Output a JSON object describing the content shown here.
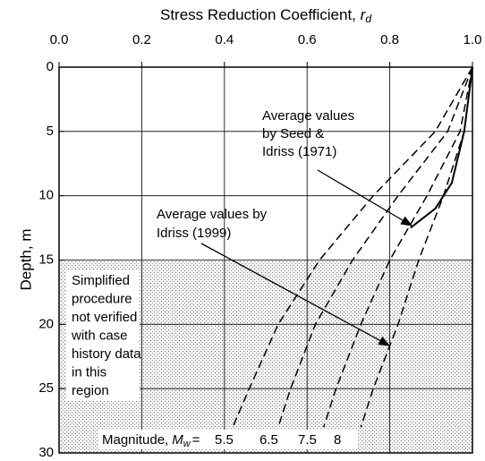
{
  "chart_data": {
    "type": "line",
    "title": {
      "text": "Stress Reduction Coefficient,",
      "symbol": "r",
      "subscript": "d"
    },
    "y_label": "Depth, m",
    "xlim": [
      0,
      1
    ],
    "xticks": [
      {
        "value": 0,
        "label": "0.0"
      },
      0.2,
      0.4,
      0.6,
      0.8,
      {
        "value": 1,
        "label": "1.0"
      }
    ],
    "ylim": [
      0,
      30
    ],
    "yticks": [
      0,
      5,
      10,
      15,
      20,
      25,
      30
    ],
    "y_inverted": true,
    "grid": true,
    "shaded_from": 15,
    "series": [
      {
        "name": "5.5",
        "color": "#000000",
        "dashed": true,
        "x": [
          1.0,
          0.91,
          0.76,
          0.63,
          0.53,
          0.46,
          0.42
        ],
        "y": [
          0,
          5,
          10,
          15,
          20,
          25,
          28
        ]
      },
      {
        "name": "6.5",
        "color": "#000000",
        "dashed": true,
        "x": [
          1.0,
          0.94,
          0.82,
          0.71,
          0.62,
          0.56,
          0.53
        ],
        "y": [
          0,
          5,
          10,
          15,
          20,
          25,
          28
        ]
      },
      {
        "name": "7.5",
        "color": "#000000",
        "dashed": true,
        "x": [
          1.0,
          0.97,
          0.89,
          0.8,
          0.73,
          0.67,
          0.64
        ],
        "y": [
          0,
          5,
          10,
          15,
          20,
          25,
          28
        ]
      },
      {
        "name": "8",
        "color": "#000000",
        "dashed": true,
        "x": [
          1.0,
          0.98,
          0.93,
          0.87,
          0.82,
          0.76,
          0.73
        ],
        "y": [
          0,
          5,
          10,
          15,
          20,
          25,
          28
        ]
      },
      {
        "color": "#000000",
        "dashed": false,
        "x": [
          1.0,
          0.98,
          0.95,
          0.91,
          0.85
        ],
        "y": [
          0,
          5,
          9,
          11,
          12.5
        ]
      }
    ],
    "magnitude_label": {
      "text": "Magnitude,",
      "symbol": "M",
      "subscript": "w",
      "equals": "="
    },
    "annotations": {
      "seed_idriss": [
        "Average values",
        "by Seed &",
        "Idriss (1971)"
      ],
      "idriss": [
        "Average values by",
        "Idriss (1999)"
      ],
      "region_note": [
        "Simplified",
        "procedure",
        "not verified",
        "with case",
        "history data",
        "in this",
        "region"
      ]
    }
  }
}
